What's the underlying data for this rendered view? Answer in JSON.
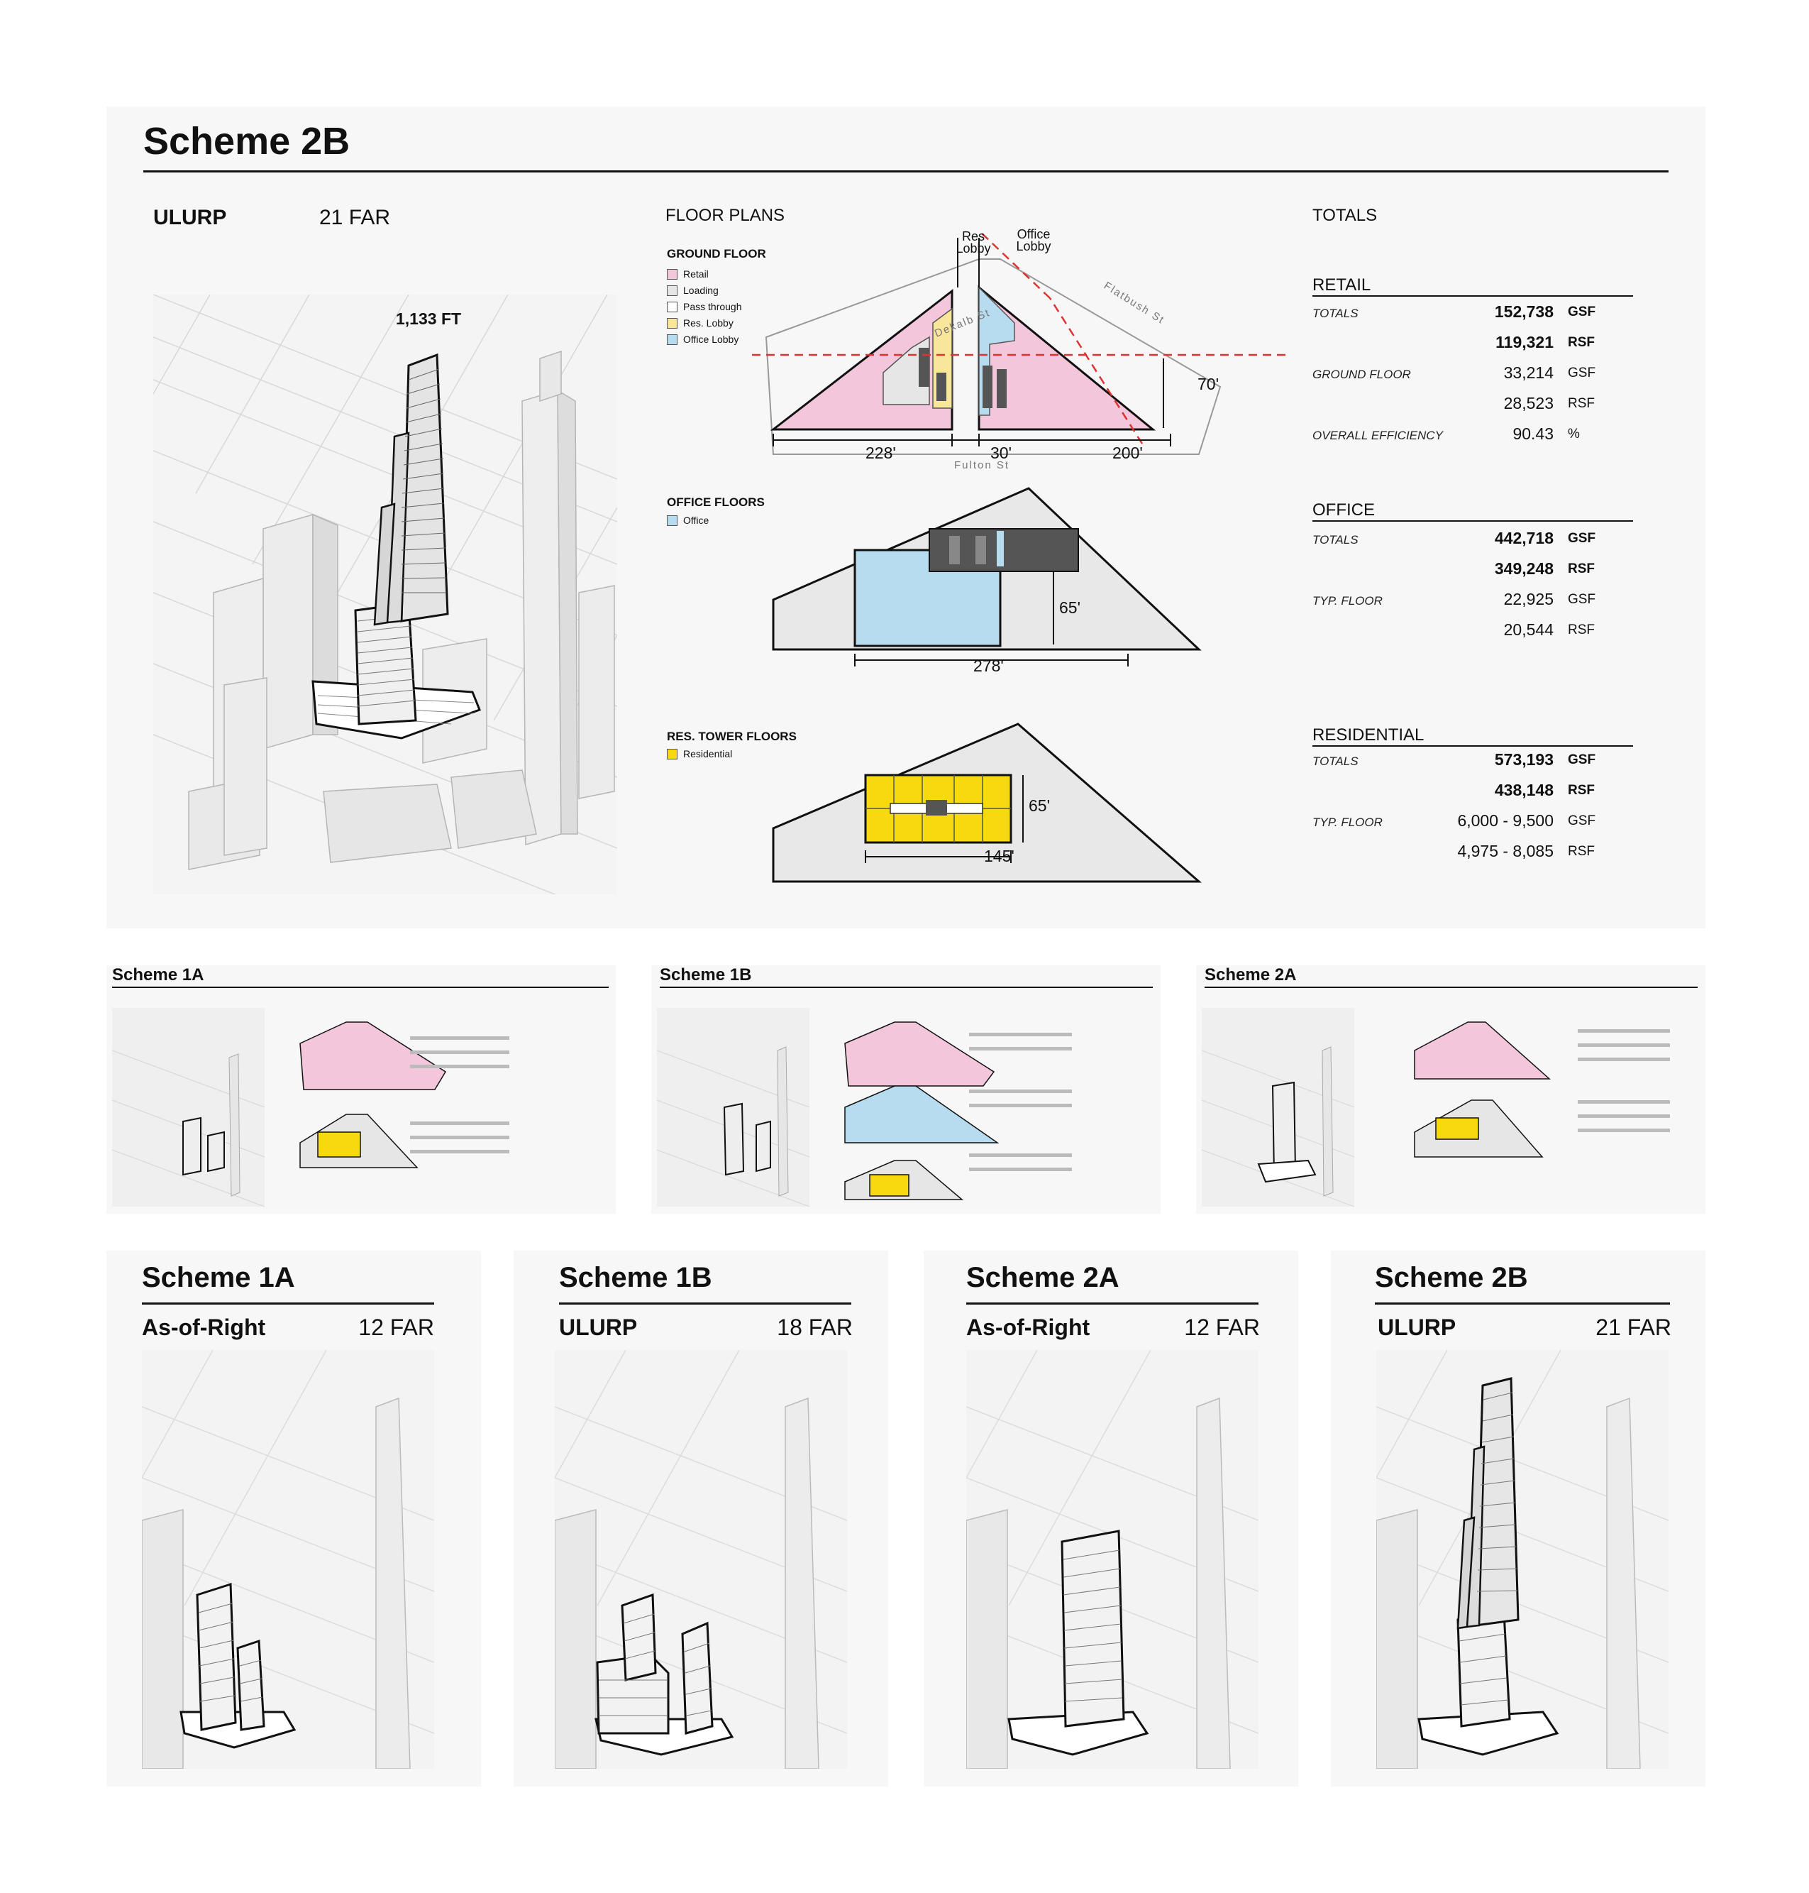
{
  "main": {
    "title": "Scheme 2B",
    "approval": "ULURP",
    "far": "21 FAR",
    "height_label": "1,133 FT",
    "floor_plans_heading": "FLOOR PLANS",
    "ground_floor": {
      "heading": "GROUND  FLOOR",
      "legend": [
        {
          "label": "Retail",
          "color": "#f4c6dc"
        },
        {
          "label": "Loading",
          "color": "#e6e6e6"
        },
        {
          "label": "Pass through",
          "color": "#ffffff"
        },
        {
          "label": "Res. Lobby",
          "color": "#f8e79a"
        },
        {
          "label": "Office Lobby",
          "color": "#b8dcef"
        }
      ],
      "res_lobby_label": "Res Lobby",
      "office_lobby_label": "Office Lobby",
      "street_dekalb": "Dekalb St",
      "street_flatbush": "Flatbush St",
      "street_fulton": "Fulton St",
      "dim_70": "70'",
      "dim_228": "228'",
      "dim_30": "30'",
      "dim_200": "200'"
    },
    "office_floors": {
      "heading": "OFFICE FLOORS",
      "legend": [
        {
          "label": "Office",
          "color": "#b8dcef"
        }
      ],
      "dim_65": "65'",
      "dim_278": "278'"
    },
    "res_floors": {
      "heading": "RES. TOWER  FLOORS",
      "legend": [
        {
          "label": "Residential",
          "color": "#f6d90f"
        }
      ],
      "dim_65": "65'",
      "dim_145": "145'"
    },
    "totals_heading": "TOTALS",
    "retail": {
      "heading": "RETAIL",
      "rows": [
        {
          "key": "TOTALS",
          "value": "152,738",
          "unit": "GSF",
          "bold": true
        },
        {
          "key": "",
          "value": "119,321",
          "unit": "RSF",
          "bold": true
        },
        {
          "key": "GROUND FLOOR",
          "value": "33,214",
          "unit": "GSF",
          "bold": false
        },
        {
          "key": "",
          "value": "28,523",
          "unit": "RSF",
          "bold": false
        },
        {
          "key": "OVERALL  EFFICIENCY",
          "value": "90.43",
          "unit": "%",
          "bold": false
        }
      ]
    },
    "office": {
      "heading": "OFFICE",
      "rows": [
        {
          "key": "TOTALS",
          "value": "442,718",
          "unit": "GSF",
          "bold": true
        },
        {
          "key": "",
          "value": "349,248",
          "unit": "RSF",
          "bold": true
        },
        {
          "key": "TYP. FLOOR",
          "value": "22,925",
          "unit": "GSF",
          "bold": false
        },
        {
          "key": "",
          "value": "20,544",
          "unit": "RSF",
          "bold": false
        }
      ]
    },
    "residential": {
      "heading": "RESIDENTIAL",
      "rows": [
        {
          "key": "TOTALS",
          "value": "573,193",
          "unit": "GSF",
          "bold": true
        },
        {
          "key": "",
          "value": "438,148",
          "unit": "RSF",
          "bold": true
        },
        {
          "key": "TYP. FLOOR",
          "value": "6,000 - 9,500",
          "unit": "GSF",
          "bold": false
        },
        {
          "key": "",
          "value": "4,975 - 8,085",
          "unit": "RSF",
          "bold": false
        }
      ]
    }
  },
  "thumbnails": [
    {
      "title": "Scheme 1A"
    },
    {
      "title": "Scheme 1B"
    },
    {
      "title": "Scheme 2A"
    }
  ],
  "bottom_cards": [
    {
      "title": "Scheme 1A",
      "approval": "As-of-Right",
      "far": "12 FAR"
    },
    {
      "title": "Scheme 1B",
      "approval": "ULURP",
      "far": "18 FAR"
    },
    {
      "title": "Scheme 2A",
      "approval": "As-of-Right",
      "far": "12 FAR"
    },
    {
      "title": "Scheme 2B",
      "approval": "ULURP",
      "far": "21 FAR"
    }
  ]
}
